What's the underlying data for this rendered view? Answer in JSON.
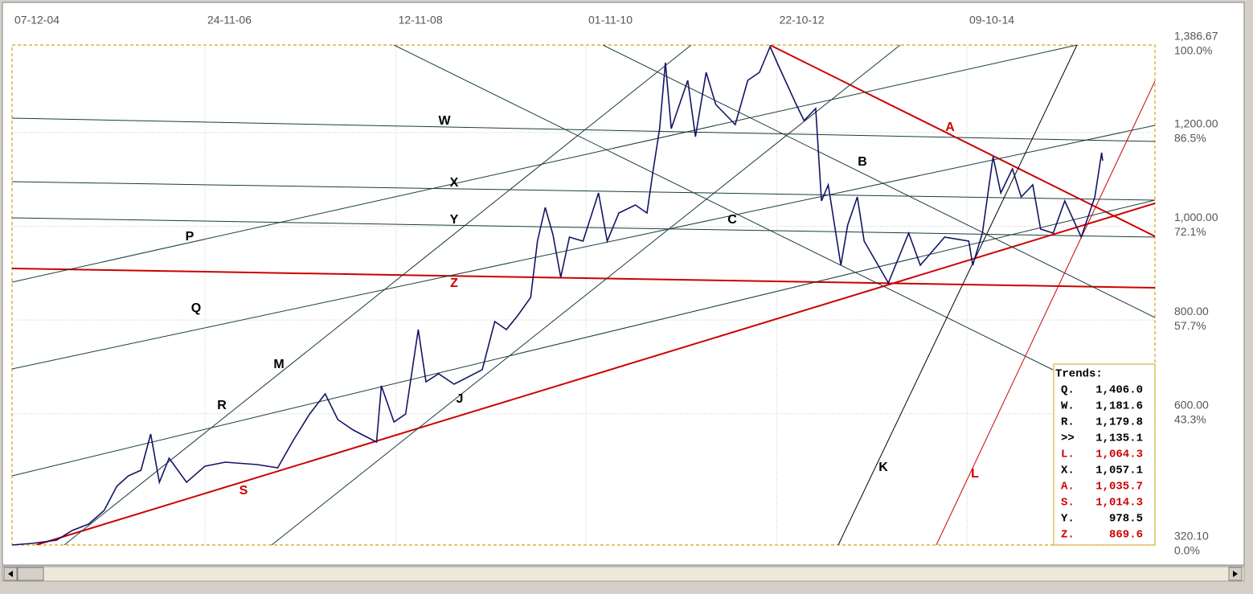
{
  "chart_data": {
    "type": "line",
    "x": [
      2004.93,
      2005.14,
      2005.39,
      2005.55,
      2005.72,
      2005.88,
      2006.01,
      2006.13,
      2006.26,
      2006.36,
      2006.45,
      2006.55,
      2006.73,
      2006.92,
      2007.13,
      2007.46,
      2007.67,
      2007.83,
      2008.0,
      2008.16,
      2008.29,
      2008.45,
      2008.69,
      2008.74,
      2008.87,
      2008.99,
      2009.12,
      2009.2,
      2009.33,
      2009.49,
      2009.78,
      2009.91,
      2010.03,
      2010.15,
      2010.28,
      2010.35,
      2010.43,
      2010.51,
      2010.59,
      2010.68,
      2010.82,
      2010.98,
      2011.07,
      2011.19,
      2011.36,
      2011.48,
      2011.54,
      2011.61,
      2011.67,
      2011.73,
      2011.9,
      2011.98,
      2012.09,
      2012.19,
      2012.39,
      2012.52,
      2012.64,
      2012.75,
      2012.83,
      2013.02,
      2013.1,
      2013.22,
      2013.28,
      2013.35,
      2013.48,
      2013.55,
      2013.65,
      2013.72,
      2013.97,
      2014.18,
      2014.3,
      2014.55,
      2014.8,
      2014.84,
      2014.94,
      2015.05,
      2015.13,
      2015.25,
      2015.34,
      2015.46,
      2015.54,
      2015.67,
      2015.79,
      2015.96,
      2016.1,
      2016.17,
      2016.18
    ],
    "values": [
      320.1,
      323.5,
      330.4,
      351.0,
      364.7,
      393.8,
      445.3,
      467.6,
      479.6,
      556.7,
      453.8,
      505.3,
      453.8,
      488.1,
      496.7,
      491.6,
      484.7,
      543.0,
      599.6,
      642.5,
      587.6,
      565.3,
      539.6,
      659.6,
      582.5,
      599.6,
      779.6,
      668.2,
      685.3,
      663.0,
      693.9,
      796.8,
      779.6,
      810.5,
      848.2,
      968.3,
      1040.3,
      982.0,
      891.1,
      976.8,
      968.3,
      1071.1,
      968.3,
      1028.3,
      1045.4,
      1028.3,
      1114.0,
      1208.3,
      1348.9,
      1208.3,
      1311.2,
      1191.2,
      1328.3,
      1259.8,
      1216.9,
      1311.2,
      1328.3,
      1383.2,
      1345.5,
      1259.8,
      1225.5,
      1251.2,
      1054.0,
      1088.3,
      916.8,
      1002.6,
      1062.6,
      968.3,
      879.1,
      985.4,
      916.8,
      976.8,
      968.3,
      916.8,
      985.4,
      1148.3,
      1071.1,
      1122.6,
      1062.6,
      1088.3,
      994.0,
      985.4,
      1054.0,
      976.8,
      1062.6,
      1156.9,
      1139.7
    ],
    "color": "#141464",
    "xlim": [
      2004.93,
      2016.72
    ],
    "xticks": [
      {
        "value": 2004.93,
        "label": "07-12-04"
      },
      {
        "value": 2006.92,
        "label": "24-11-06"
      },
      {
        "value": 2008.89,
        "label": "12-11-08"
      },
      {
        "value": 2010.85,
        "label": "01-11-10"
      },
      {
        "value": 2012.82,
        "label": "22-10-12"
      },
      {
        "value": 2014.78,
        "label": "09-10-14"
      }
    ],
    "ylim": [
      320.1,
      1386.67
    ],
    "yticks": [
      {
        "value": 320.1,
        "label": "320.10"
      },
      {
        "value": 600,
        "label": "600.00"
      },
      {
        "value": 800,
        "label": "800.00"
      },
      {
        "value": 1000,
        "label": "1,000.00"
      },
      {
        "value": 1200,
        "label": "1,200.00"
      },
      {
        "value": 1386.67,
        "label": "1,386.67"
      }
    ],
    "ytick_percent_labels": [
      "0.0%",
      "43.3%",
      "57.7%",
      "72.1%",
      "86.5%",
      "100.0%"
    ],
    "grid": true,
    "trend_labels": [
      {
        "text": "W",
        "color": "#000000"
      },
      {
        "text": "X",
        "color": "#000000"
      },
      {
        "text": "Y",
        "color": "#000000"
      },
      {
        "text": "Z",
        "color": "#cc0000"
      },
      {
        "text": "P",
        "color": "#000000"
      },
      {
        "text": "Q",
        "color": "#000000"
      },
      {
        "text": "M",
        "color": "#000000"
      },
      {
        "text": "R",
        "color": "#000000"
      },
      {
        "text": "S",
        "color": "#cc0000"
      },
      {
        "text": "J",
        "color": "#000000"
      },
      {
        "text": "C",
        "color": "#000000"
      },
      {
        "text": "B",
        "color": "#000000"
      },
      {
        "text": "A",
        "color": "#cc0000"
      },
      {
        "text": "K",
        "color": "#000000"
      },
      {
        "text": "L",
        "color": "#cc0000"
      }
    ],
    "trends_table": {
      "title": "Trends:",
      "rows": [
        [
          "Q.",
          "1,406.0"
        ],
        [
          ">>",
          "1,135.1"
        ]
      ],
      "all_rows": [
        {
          "label": "Q.",
          "value": "1,406.0",
          "color": "#000000"
        },
        {
          "label": "W.",
          "value": "1,181.6",
          "color": "#000000"
        },
        {
          "label": "R.",
          "value": "1,179.8",
          "color": "#000000"
        },
        {
          "label": ">>",
          "value": "1,135.1",
          "color": "#000000"
        },
        {
          "label": "L.",
          "value": "1,064.3",
          "color": "#cc0000"
        },
        {
          "label": "X.",
          "value": "1,057.1",
          "color": "#000000"
        },
        {
          "label": "A.",
          "value": "1,035.7",
          "color": "#cc0000"
        },
        {
          "label": "S.",
          "value": "1,014.3",
          "color": "#cc0000"
        },
        {
          "label": "Y.",
          "value": "978.5",
          "color": "#000000"
        },
        {
          "label": "Z.",
          "value": "869.6",
          "color": "#cc0000"
        }
      ]
    }
  }
}
